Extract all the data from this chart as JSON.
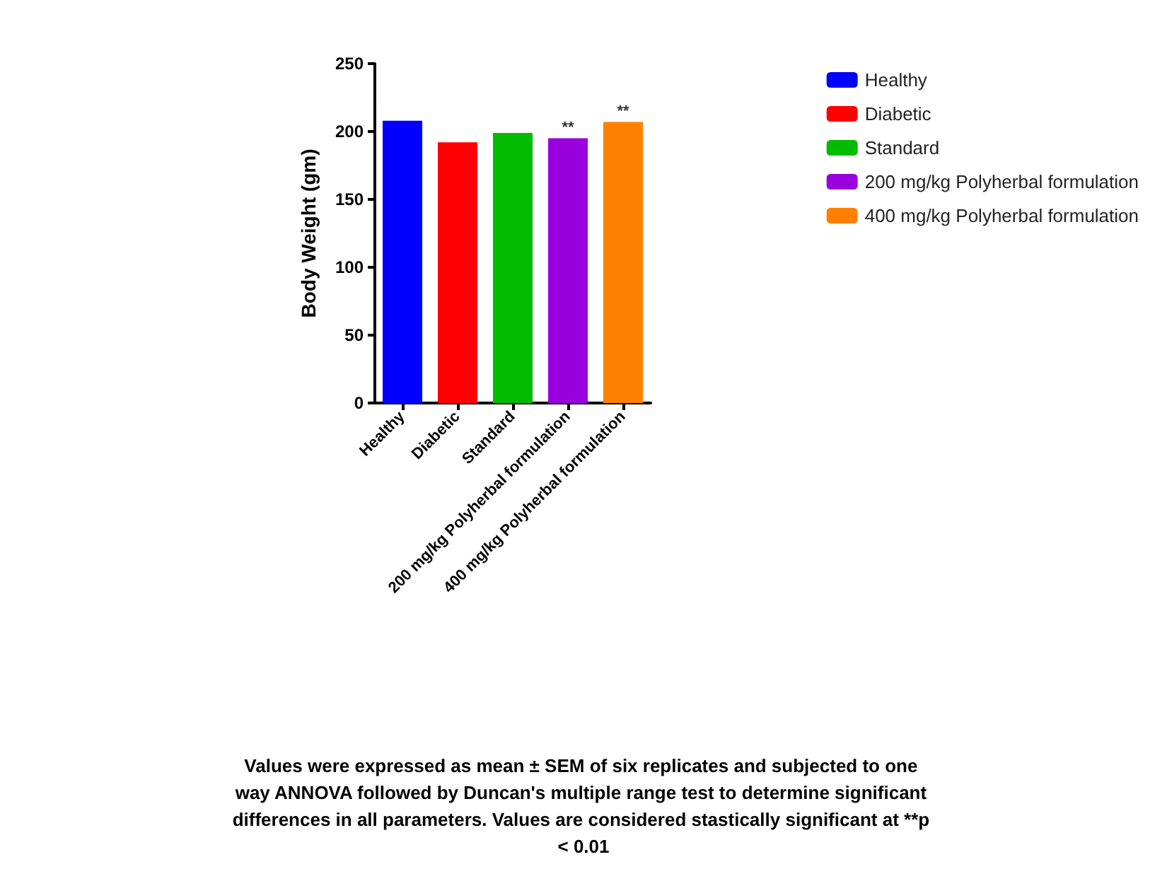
{
  "chart_data": {
    "type": "bar",
    "ylabel": "Body Weight (gm)",
    "categories": [
      "Healthy",
      "Diabetic",
      "Standard",
      "200 mg/kg Polyherbal formulation",
      "400 mg/kg Polyherbal formulation"
    ],
    "series": [
      {
        "name": "Healthy",
        "color": "#0000ff",
        "values": [
          208,
          null,
          null,
          null,
          null
        ]
      },
      {
        "name": "Diabetic",
        "color": "#ff0000",
        "values": [
          null,
          192,
          null,
          null,
          null
        ]
      },
      {
        "name": "Standard",
        "color": "#00bb00",
        "values": [
          null,
          null,
          199,
          null,
          null
        ]
      },
      {
        "name": "200 mg/kg Polyherbal formulation",
        "color": "#9900dd",
        "values": [
          null,
          null,
          null,
          195,
          null
        ]
      },
      {
        "name": "400 mg/kg Polyherbal formulation",
        "color": "#ff8000",
        "values": [
          null,
          null,
          null,
          null,
          207
        ]
      }
    ],
    "stacked": true,
    "ylim": [
      0,
      250
    ],
    "yticks": [
      0,
      50,
      100,
      150,
      200,
      250
    ],
    "grid": false,
    "legend": "right",
    "annotations": [
      {
        "text": "**",
        "x": "200 mg/kg Polyherbal formulation",
        "y": 195
      },
      {
        "text": "**",
        "x": "400 mg/kg Polyherbal formulation",
        "y": 207
      },
      "Values were expressed as mean ± SEM of six replicates and subjected to one way ANNOVA followed by Duncan's multiple range test to determine significant differences in all parameters. Values are considered stastically significant at **p < 0.01"
    ]
  }
}
